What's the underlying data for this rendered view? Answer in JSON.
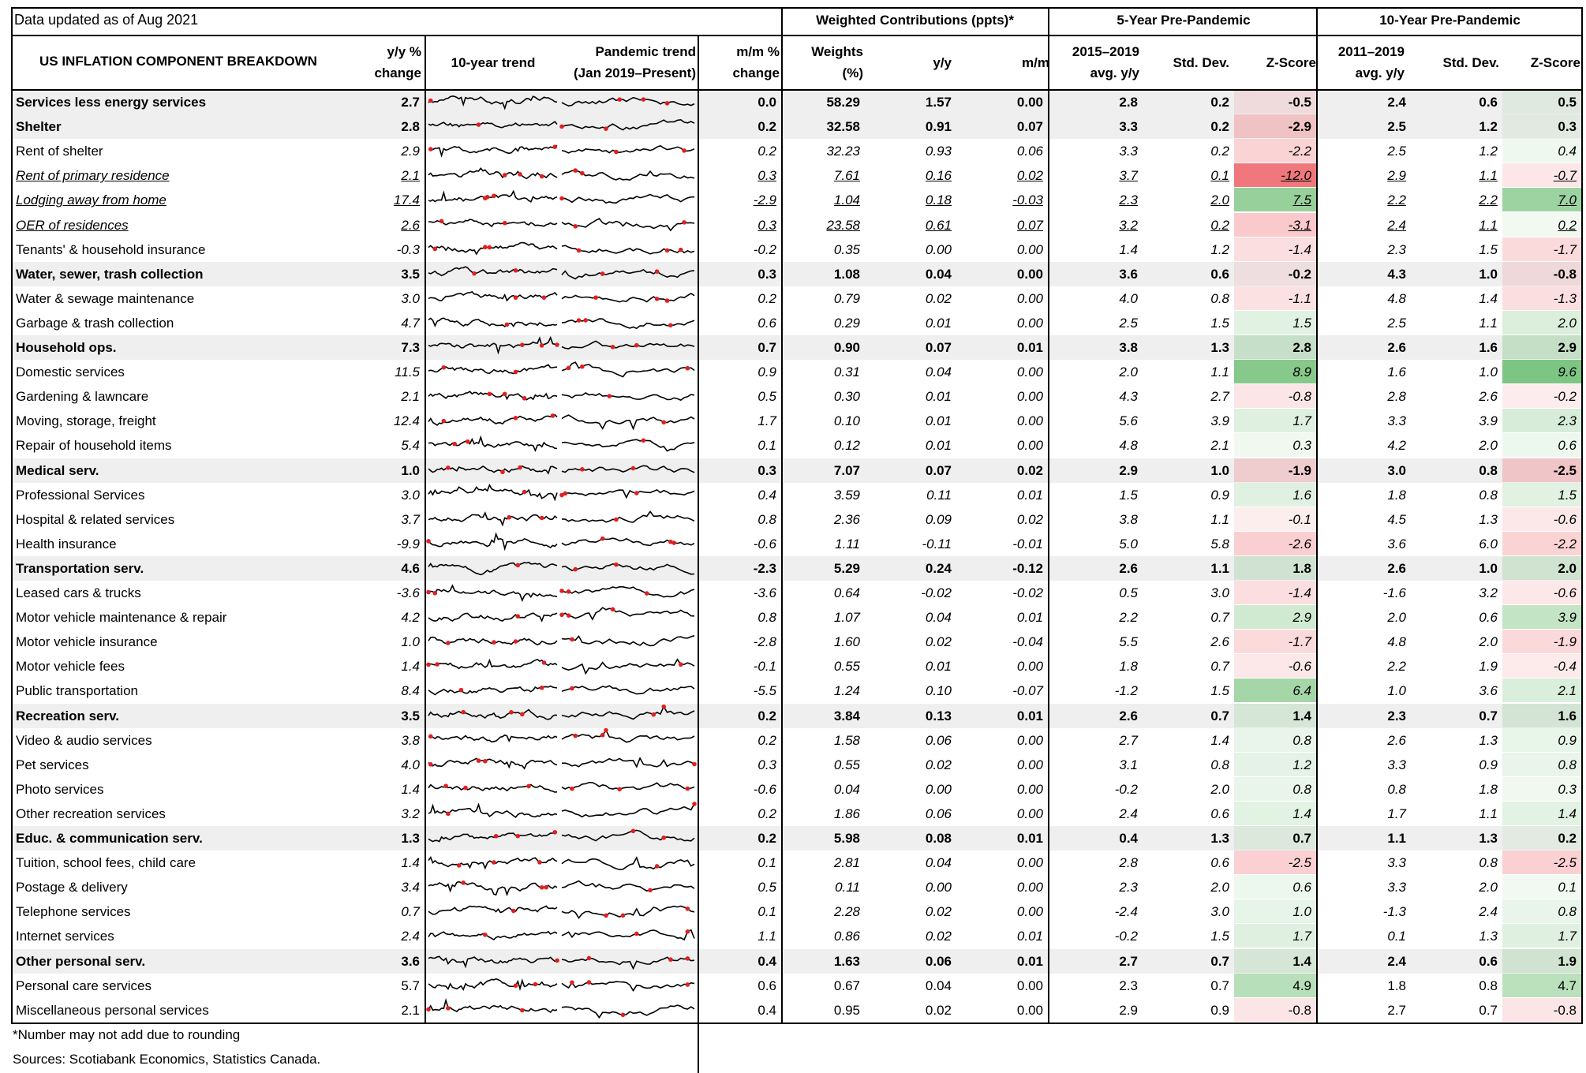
{
  "data_updated": "Data updated as of Aug 2021",
  "headers": {
    "weighted": "Weighted Contributions (ppts)*",
    "five_year": "5-Year Pre-Pandemic",
    "ten_year": "10-Year Pre-Pandemic",
    "component": "US INFLATION COMPONENT BREAKDOWN",
    "yoy": [
      "y/y %",
      "change"
    ],
    "trend10": "10-year trend",
    "pandemic": [
      "Pandemic trend",
      "(Jan 2019–Present)"
    ],
    "mom": [
      "m/m %",
      "change"
    ],
    "weights": [
      "Weights",
      "(%)"
    ],
    "wc_yoy": "y/y",
    "wc_mom": "m/m",
    "five_avg": [
      "2015–2019",
      "avg. y/y"
    ],
    "five_sd": "Std. Dev.",
    "five_z": "Z-Score",
    "ten_avg": [
      "2011–2019",
      "avg. y/y"
    ],
    "ten_sd": "Std. Dev.",
    "ten_z": "Z-Score"
  },
  "rows": [
    {
      "name": "Services less energy services",
      "style": "bold",
      "yoy": "2.7",
      "mom": "0.0",
      "w": "58.29",
      "wy": "1.57",
      "wm": "0.00",
      "a5": "2.8",
      "s5": "0.2",
      "z5": "-0.5",
      "a10": "2.4",
      "s10": "0.6",
      "z10": "0.5"
    },
    {
      "name": "Shelter",
      "style": "bold",
      "yoy": "2.8",
      "mom": "0.2",
      "w": "32.58",
      "wy": "0.91",
      "wm": "0.07",
      "a5": "3.3",
      "s5": "0.2",
      "z5": "-2.9",
      "a10": "2.5",
      "s10": "1.2",
      "z10": "0.3"
    },
    {
      "name": "Rent of shelter",
      "style": "italic",
      "yoy": "2.9",
      "mom": "0.2",
      "w": "32.23",
      "wy": "0.93",
      "wm": "0.06",
      "a5": "3.3",
      "s5": "0.2",
      "z5": "-2.2",
      "a10": "2.5",
      "s10": "1.2",
      "z10": "0.4"
    },
    {
      "name": "Rent of  primary residence",
      "style": "under",
      "yoy": "2.1",
      "mom": "0.3",
      "w": "7.61",
      "wy": "0.16",
      "wm": "0.02",
      "a5": "3.7",
      "s5": "0.1",
      "z5": "-12.0",
      "a10": "2.9",
      "s10": "1.1",
      "z10": "-0.7"
    },
    {
      "name": "Lodging away from home",
      "style": "under",
      "yoy": "17.4",
      "mom": "-2.9",
      "w": "1.04",
      "wy": "0.18",
      "wm": "-0.03",
      "a5": "2.3",
      "s5": "2.0",
      "z5": "7.5",
      "a10": "2.2",
      "s10": "2.2",
      "z10": "7.0"
    },
    {
      "name": "OER of residences",
      "style": "under",
      "yoy": "2.6",
      "mom": "0.3",
      "w": "23.58",
      "wy": "0.61",
      "wm": "0.07",
      "a5": "3.2",
      "s5": "0.2",
      "z5": "-3.1",
      "a10": "2.4",
      "s10": "1.1",
      "z10": "0.2"
    },
    {
      "name": "Tenants' & household insurance",
      "style": "italic",
      "yoy": "-0.3",
      "mom": "-0.2",
      "w": "0.35",
      "wy": "0.00",
      "wm": "0.00",
      "a5": "1.4",
      "s5": "1.2",
      "z5": "-1.4",
      "a10": "2.3",
      "s10": "1.5",
      "z10": "-1.7"
    },
    {
      "name": "Water, sewer, trash collection",
      "style": "bold",
      "yoy": "3.5",
      "mom": "0.3",
      "w": "1.08",
      "wy": "0.04",
      "wm": "0.00",
      "a5": "3.6",
      "s5": "0.6",
      "z5": "-0.2",
      "a10": "4.3",
      "s10": "1.0",
      "z10": "-0.8"
    },
    {
      "name": "Water & sewage maintenance",
      "style": "italic",
      "yoy": "3.0",
      "mom": "0.2",
      "w": "0.79",
      "wy": "0.02",
      "wm": "0.00",
      "a5": "4.0",
      "s5": "0.8",
      "z5": "-1.1",
      "a10": "4.8",
      "s10": "1.4",
      "z10": "-1.3"
    },
    {
      "name": "Garbage & trash collection",
      "style": "italic",
      "yoy": "4.7",
      "mom": "0.6",
      "w": "0.29",
      "wy": "0.01",
      "wm": "0.00",
      "a5": "2.5",
      "s5": "1.5",
      "z5": "1.5",
      "a10": "2.5",
      "s10": "1.1",
      "z10": "2.0"
    },
    {
      "name": "Household ops.",
      "style": "bold",
      "yoy": "7.3",
      "mom": "0.7",
      "w": "0.90",
      "wy": "0.07",
      "wm": "0.01",
      "a5": "3.8",
      "s5": "1.3",
      "z5": "2.8",
      "a10": "2.6",
      "s10": "1.6",
      "z10": "2.9"
    },
    {
      "name": "Domestic services",
      "style": "italic",
      "yoy": "11.5",
      "mom": "0.9",
      "w": "0.31",
      "wy": "0.04",
      "wm": "0.00",
      "a5": "2.0",
      "s5": "1.1",
      "z5": "8.9",
      "a10": "1.6",
      "s10": "1.0",
      "z10": "9.6"
    },
    {
      "name": "Gardening & lawncare",
      "style": "italic",
      "yoy": "2.1",
      "mom": "0.5",
      "w": "0.30",
      "wy": "0.01",
      "wm": "0.00",
      "a5": "4.3",
      "s5": "2.7",
      "z5": "-0.8",
      "a10": "2.8",
      "s10": "2.6",
      "z10": "-0.2"
    },
    {
      "name": "Moving, storage, freight",
      "style": "italic",
      "yoy": "12.4",
      "mom": "1.7",
      "w": "0.10",
      "wy": "0.01",
      "wm": "0.00",
      "a5": "5.6",
      "s5": "3.9",
      "z5": "1.7",
      "a10": "3.3",
      "s10": "3.9",
      "z10": "2.3"
    },
    {
      "name": "Repair of household items",
      "style": "italic",
      "yoy": "5.4",
      "mom": "0.1",
      "w": "0.12",
      "wy": "0.01",
      "wm": "0.00",
      "a5": "4.8",
      "s5": "2.1",
      "z5": "0.3",
      "a10": "4.2",
      "s10": "2.0",
      "z10": "0.6"
    },
    {
      "name": "Medical serv.",
      "style": "bold",
      "yoy": "1.0",
      "mom": "0.3",
      "w": "7.07",
      "wy": "0.07",
      "wm": "0.02",
      "a5": "2.9",
      "s5": "1.0",
      "z5": "-1.9",
      "a10": "3.0",
      "s10": "0.8",
      "z10": "-2.5"
    },
    {
      "name": "Professional Services",
      "style": "italic",
      "yoy": "3.0",
      "mom": "0.4",
      "w": "3.59",
      "wy": "0.11",
      "wm": "0.01",
      "a5": "1.5",
      "s5": "0.9",
      "z5": "1.6",
      "a10": "1.8",
      "s10": "0.8",
      "z10": "1.5"
    },
    {
      "name": "Hospital & related services",
      "style": "italic",
      "yoy": "3.7",
      "mom": "0.8",
      "w": "2.36",
      "wy": "0.09",
      "wm": "0.02",
      "a5": "3.8",
      "s5": "1.1",
      "z5": "-0.1",
      "a10": "4.5",
      "s10": "1.3",
      "z10": "-0.6"
    },
    {
      "name": "Health insurance",
      "style": "italic",
      "yoy": "-9.9",
      "mom": "-0.6",
      "w": "1.11",
      "wy": "-0.11",
      "wm": "-0.01",
      "a5": "5.0",
      "s5": "5.8",
      "z5": "-2.6",
      "a10": "3.6",
      "s10": "6.0",
      "z10": "-2.2"
    },
    {
      "name": "Transportation serv.",
      "style": "bold",
      "yoy": "4.6",
      "mom": "-2.3",
      "w": "5.29",
      "wy": "0.24",
      "wm": "-0.12",
      "a5": "2.6",
      "s5": "1.1",
      "z5": "1.8",
      "a10": "2.6",
      "s10": "1.0",
      "z10": "2.0"
    },
    {
      "name": "Leased cars & trucks",
      "style": "italic",
      "yoy": "-3.6",
      "mom": "-3.6",
      "w": "0.64",
      "wy": "-0.02",
      "wm": "-0.02",
      "a5": "0.5",
      "s5": "3.0",
      "z5": "-1.4",
      "a10": "-1.6",
      "s10": "3.2",
      "z10": "-0.6"
    },
    {
      "name": "Motor vehicle maintenance & repair",
      "style": "italic",
      "yoy": "4.2",
      "mom": "0.8",
      "w": "1.07",
      "wy": "0.04",
      "wm": "0.01",
      "a5": "2.2",
      "s5": "0.7",
      "z5": "2.9",
      "a10": "2.0",
      "s10": "0.6",
      "z10": "3.9"
    },
    {
      "name": "Motor vehicle insurance",
      "style": "italic",
      "yoy": "1.0",
      "mom": "-2.8",
      "w": "1.60",
      "wy": "0.02",
      "wm": "-0.04",
      "a5": "5.5",
      "s5": "2.6",
      "z5": "-1.7",
      "a10": "4.8",
      "s10": "2.0",
      "z10": "-1.9"
    },
    {
      "name": "Motor vehicle fees",
      "style": "italic",
      "yoy": "1.4",
      "mom": "-0.1",
      "w": "0.55",
      "wy": "0.01",
      "wm": "0.00",
      "a5": "1.8",
      "s5": "0.7",
      "z5": "-0.6",
      "a10": "2.2",
      "s10": "1.9",
      "z10": "-0.4"
    },
    {
      "name": "Public transportation",
      "style": "italic",
      "yoy": "8.4",
      "mom": "-5.5",
      "w": "1.24",
      "wy": "0.10",
      "wm": "-0.07",
      "a5": "-1.2",
      "s5": "1.5",
      "z5": "6.4",
      "a10": "1.0",
      "s10": "3.6",
      "z10": "2.1"
    },
    {
      "name": "Recreation serv.",
      "style": "bold",
      "yoy": "3.5",
      "mom": "0.2",
      "w": "3.84",
      "wy": "0.13",
      "wm": "0.01",
      "a5": "2.6",
      "s5": "0.7",
      "z5": "1.4",
      "a10": "2.3",
      "s10": "0.7",
      "z10": "1.6"
    },
    {
      "name": "Video & audio services",
      "style": "italic",
      "yoy": "3.8",
      "mom": "0.2",
      "w": "1.58",
      "wy": "0.06",
      "wm": "0.00",
      "a5": "2.7",
      "s5": "1.4",
      "z5": "0.8",
      "a10": "2.6",
      "s10": "1.3",
      "z10": "0.9"
    },
    {
      "name": "Pet services",
      "style": "italic",
      "yoy": "4.0",
      "mom": "0.3",
      "w": "0.55",
      "wy": "0.02",
      "wm": "0.00",
      "a5": "3.1",
      "s5": "0.8",
      "z5": "1.2",
      "a10": "3.3",
      "s10": "0.9",
      "z10": "0.8"
    },
    {
      "name": "Photo services",
      "style": "italic",
      "yoy": "1.4",
      "mom": "-0.6",
      "w": "0.04",
      "wy": "0.00",
      "wm": "0.00",
      "a5": "-0.2",
      "s5": "2.0",
      "z5": "0.8",
      "a10": "0.8",
      "s10": "1.8",
      "z10": "0.3"
    },
    {
      "name": "Other recreation services",
      "style": "italic",
      "yoy": "3.2",
      "mom": "0.2",
      "w": "1.86",
      "wy": "0.06",
      "wm": "0.00",
      "a5": "2.4",
      "s5": "0.6",
      "z5": "1.4",
      "a10": "1.7",
      "s10": "1.1",
      "z10": "1.4"
    },
    {
      "name": "Educ. & communication serv.",
      "style": "bold",
      "yoy": "1.3",
      "mom": "0.2",
      "w": "5.98",
      "wy": "0.08",
      "wm": "0.01",
      "a5": "0.4",
      "s5": "1.3",
      "z5": "0.7",
      "a10": "1.1",
      "s10": "1.3",
      "z10": "0.2"
    },
    {
      "name": "Tuition, school fees, child care",
      "style": "italic",
      "yoy": "1.4",
      "mom": "0.1",
      "w": "2.81",
      "wy": "0.04",
      "wm": "0.00",
      "a5": "2.8",
      "s5": "0.6",
      "z5": "-2.5",
      "a10": "3.3",
      "s10": "0.8",
      "z10": "-2.5"
    },
    {
      "name": "Postage & delivery",
      "style": "italic",
      "yoy": "3.4",
      "mom": "0.5",
      "w": "0.11",
      "wy": "0.00",
      "wm": "0.00",
      "a5": "2.3",
      "s5": "2.0",
      "z5": "0.6",
      "a10": "3.3",
      "s10": "2.0",
      "z10": "0.1"
    },
    {
      "name": "Telephone services",
      "style": "italic",
      "yoy": "0.7",
      "mom": "0.1",
      "w": "2.28",
      "wy": "0.02",
      "wm": "0.00",
      "a5": "-2.4",
      "s5": "3.0",
      "z5": "1.0",
      "a10": "-1.3",
      "s10": "2.4",
      "z10": "0.8"
    },
    {
      "name": "Internet services",
      "style": "italic",
      "yoy": "2.4",
      "mom": "1.1",
      "w": "0.86",
      "wy": "0.02",
      "wm": "0.01",
      "a5": "-0.2",
      "s5": "1.5",
      "z5": "1.7",
      "a10": "0.1",
      "s10": "1.3",
      "z10": "1.7"
    },
    {
      "name": "Other personal serv.",
      "style": "bold",
      "yoy": "3.6",
      "mom": "0.4",
      "w": "1.63",
      "wy": "0.06",
      "wm": "0.01",
      "a5": "2.7",
      "s5": "0.7",
      "z5": "1.4",
      "a10": "2.4",
      "s10": "0.6",
      "z10": "1.9"
    },
    {
      "name": "Personal care services",
      "style": "plain",
      "yoy": "5.7",
      "mom": "0.6",
      "w": "0.67",
      "wy": "0.04",
      "wm": "0.00",
      "a5": "2.3",
      "s5": "0.7",
      "z5": "4.9",
      "a10": "1.8",
      "s10": "0.8",
      "z10": "4.7"
    },
    {
      "name": "Miscellaneous personal services",
      "style": "plain",
      "yoy": "2.1",
      "mom": "0.4",
      "w": "0.95",
      "wy": "0.02",
      "wm": "0.00",
      "a5": "2.9",
      "s5": "0.9",
      "z5": "-0.8",
      "a10": "2.7",
      "s10": "0.7",
      "z10": "-0.8"
    }
  ],
  "footnote": "*Number may not add due to rounding",
  "sources": "Sources: Scotiabank Economics, Statistics Canada.",
  "colors": {
    "band": "#efefef",
    "neg": "#f3a0a3",
    "pos": "#8cc98f",
    "line": "#000000",
    "marker": "#e0201e"
  }
}
